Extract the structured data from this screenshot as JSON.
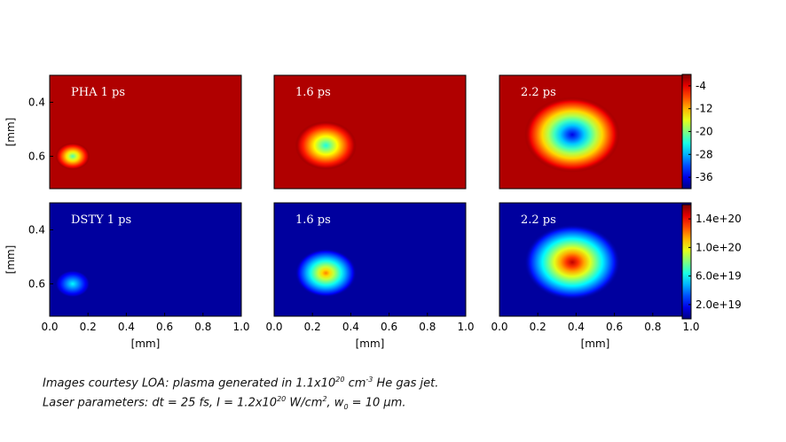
{
  "chart_data": [
    {
      "type": "heatmap",
      "grid": [
        {
          "panel_label": "PHA 1 ps",
          "ylabel": "[mm]",
          "yticks": [
            "0.4",
            "0.6"
          ],
          "blobs": [
            {
              "x": 0.12,
              "y": 0.6,
              "rx": 0.09,
              "ry": 0.05,
              "peak": -22
            }
          ]
        },
        {
          "panel_label": "1.6 ps",
          "blobs": [
            {
              "x": 0.27,
              "y": 0.56,
              "rx": 0.16,
              "ry": 0.09,
              "peak": -24
            }
          ]
        },
        {
          "panel_label": "2.2 ps",
          "blobs": [
            {
              "x": 0.38,
              "y": 0.52,
              "rx": 0.25,
              "ry": 0.14,
              "peak": -36
            }
          ]
        },
        {
          "panel_label": "DSTY 1 ps",
          "ylabel": "[mm]",
          "yticks": [
            "0.4",
            "0.6"
          ],
          "xlabel": "[mm]",
          "xticks": [
            "0.0",
            "0.2",
            "0.4",
            "0.6",
            "0.8",
            "1.0"
          ],
          "blobs": [
            {
              "x": 0.12,
              "y": 0.6,
              "rx": 0.09,
              "ry": 0.05,
              "peak": 6e+19
            }
          ]
        },
        {
          "panel_label": "1.6 ps",
          "xlabel": "[mm]",
          "xticks": [
            "0.0",
            "0.2",
            "0.4",
            "0.6",
            "0.8",
            "1.0"
          ],
          "blobs": [
            {
              "x": 0.27,
              "y": 0.56,
              "rx": 0.16,
              "ry": 0.09,
              "peak": 1.2e+20
            }
          ]
        },
        {
          "panel_label": "2.2 ps",
          "xlabel": "[mm]",
          "xticks": [
            "0.0",
            "0.2",
            "0.4",
            "0.6",
            "0.8",
            "1.0"
          ],
          "blobs": [
            {
              "x": 0.38,
              "y": 0.52,
              "rx": 0.25,
              "ry": 0.14,
              "peak": 1.5e+20
            }
          ]
        }
      ],
      "colorbars": [
        {
          "ticks": [
            "-4",
            "-12",
            "-20",
            "-28",
            "-36"
          ],
          "range": [
            -40,
            0
          ]
        },
        {
          "ticks": [
            "1.4e+20",
            "1.0e+20",
            "6.0e+19",
            "2.0e+19"
          ],
          "range": [
            0,
            1.6e+20
          ]
        }
      ],
      "colormap": "jet",
      "xlim": [
        0.0,
        1.0
      ],
      "ylim": [
        0.72,
        0.3
      ]
    }
  ],
  "caption": {
    "line1_a": "Images courtesy LOA: plasma generated in 1.1x10",
    "line1_sup": "20",
    "line1_b": " cm",
    "line1_sup2": "-3",
    "line1_c": " He gas jet.",
    "line2_a": "Laser parameters: dt = 25 fs, I = 1.2x10",
    "line2_sup": "20",
    "line2_b": " W/cm",
    "line2_sup2": "2",
    "line2_c": ", w",
    "line2_sub": "0",
    "line2_d": " = 10 µm."
  }
}
